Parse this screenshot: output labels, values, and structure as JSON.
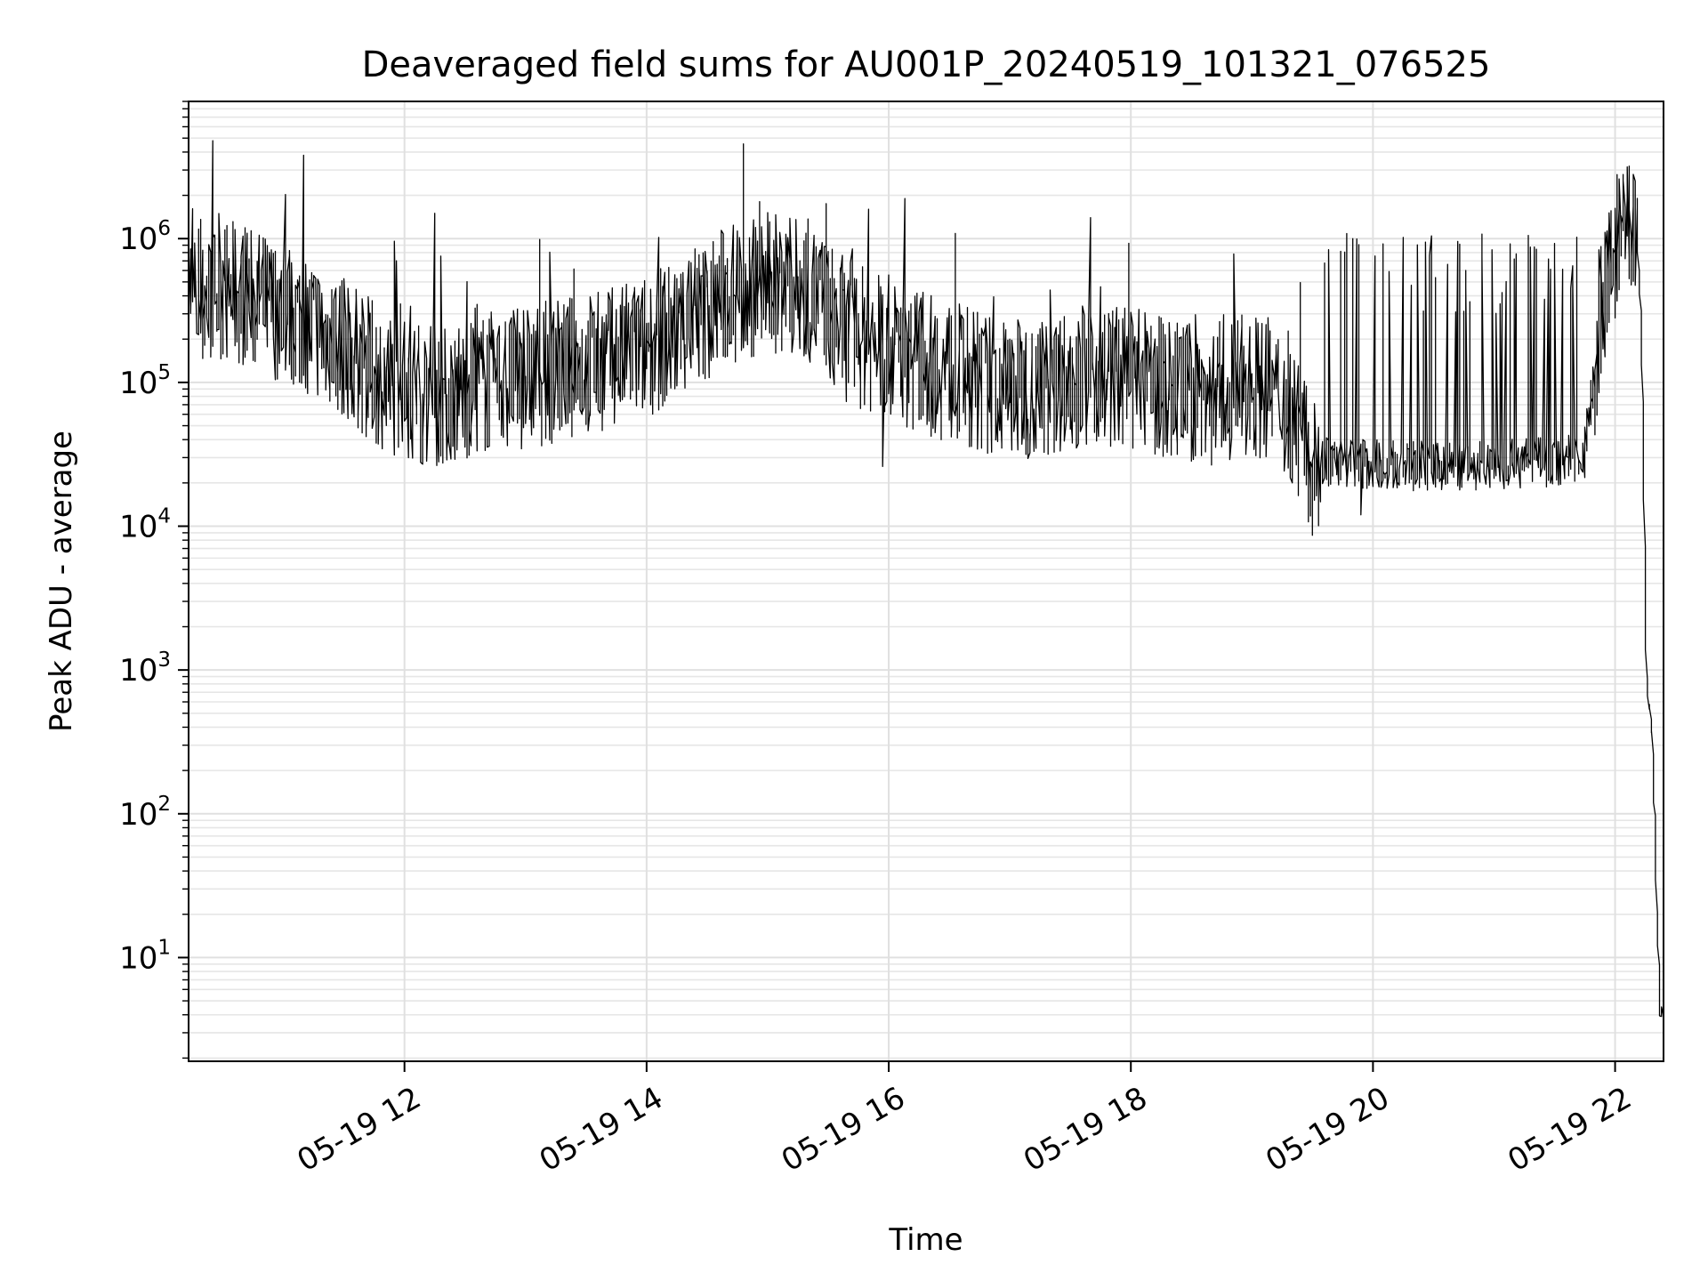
{
  "chart_data": {
    "type": "line",
    "title": "Deaveraged field sums for AU001P_20240519_101321_076525",
    "xlabel": "Time",
    "ylabel": "Peak ADU - average",
    "x_scale": "time",
    "y_scale": "log",
    "xlim": [
      "2024-05-19 10:13",
      "2024-05-19 22:24"
    ],
    "ylim": [
      1.9,
      9000000
    ],
    "grid": true,
    "legend": "none",
    "line_color": "#000000",
    "x_ticks": [
      {
        "value": "2024-05-19 12:00",
        "label": "05-19 12"
      },
      {
        "value": "2024-05-19 14:00",
        "label": "05-19 14"
      },
      {
        "value": "2024-05-19 16:00",
        "label": "05-19 16"
      },
      {
        "value": "2024-05-19 18:00",
        "label": "05-19 18"
      },
      {
        "value": "2024-05-19 20:00",
        "label": "05-19 20"
      },
      {
        "value": "2024-05-19 22:00",
        "label": "05-19 22"
      }
    ],
    "y_ticks": [
      {
        "value": 10,
        "base": "10",
        "exp": "1"
      },
      {
        "value": 100,
        "base": "10",
        "exp": "2"
      },
      {
        "value": 1000,
        "base": "10",
        "exp": "3"
      },
      {
        "value": 10000,
        "base": "10",
        "exp": "4"
      },
      {
        "value": 100000,
        "base": "10",
        "exp": "5"
      },
      {
        "value": 1000000,
        "base": "10",
        "exp": "6"
      }
    ],
    "series": [
      {
        "x": [
          "2024-05-19 10:13",
          "2024-05-19 10:20",
          "2024-05-19 10:25",
          "2024-05-19 10:30",
          "2024-05-19 10:40",
          "2024-05-19 10:50",
          "2024-05-19 11:00",
          "2024-05-19 11:10",
          "2024-05-19 11:20",
          "2024-05-19 11:30",
          "2024-05-19 11:40",
          "2024-05-19 11:50",
          "2024-05-19 12:00",
          "2024-05-19 12:20",
          "2024-05-19 12:40",
          "2024-05-19 13:00",
          "2024-05-19 13:20",
          "2024-05-19 13:40",
          "2024-05-19 14:00",
          "2024-05-19 14:20",
          "2024-05-19 14:40",
          "2024-05-19 15:00",
          "2024-05-19 15:20",
          "2024-05-19 15:40",
          "2024-05-19 16:00",
          "2024-05-19 16:20",
          "2024-05-19 16:40",
          "2024-05-19 17:00",
          "2024-05-19 17:20",
          "2024-05-19 17:40",
          "2024-05-19 18:00",
          "2024-05-19 18:20",
          "2024-05-19 18:40",
          "2024-05-19 19:00",
          "2024-05-19 19:10",
          "2024-05-19 19:20",
          "2024-05-19 19:30",
          "2024-05-19 19:40",
          "2024-05-19 19:50",
          "2024-05-19 20:00",
          "2024-05-19 20:30",
          "2024-05-19 21:00",
          "2024-05-19 21:30",
          "2024-05-19 21:45",
          "2024-05-19 21:50",
          "2024-05-19 21:55",
          "2024-05-19 22:00",
          "2024-05-19 22:05",
          "2024-05-19 22:10",
          "2024-05-19 22:12",
          "2024-05-19 22:14",
          "2024-05-19 22:15",
          "2024-05-19 22:16",
          "2024-05-19 22:17",
          "2024-05-19 22:19",
          "2024-05-19 22:20",
          "2024-05-19 22:21",
          "2024-05-19 22:22",
          "2024-05-19 22:23",
          "2024-05-19 22:24"
        ],
        "y": [
          500000,
          350000,
          450000,
          500000,
          450000,
          400000,
          350000,
          300000,
          250000,
          200000,
          150000,
          120000,
          100000,
          90000,
          110000,
          120000,
          140000,
          160000,
          200000,
          280000,
          450000,
          550000,
          500000,
          250000,
          200000,
          150000,
          120000,
          100000,
          110000,
          130000,
          120000,
          100000,
          90000,
          110000,
          100000,
          70000,
          30000,
          28000,
          27000,
          27000,
          26000,
          27000,
          28000,
          30000,
          100000,
          400000,
          900000,
          1300000,
          1200000,
          800000,
          120000,
          8000,
          900,
          600,
          350,
          100,
          30,
          8,
          4,
          4
        ]
      }
    ],
    "spikes": [
      {
        "x": "2024-05-19 10:25",
        "y": 4800000
      },
      {
        "x": "2024-05-19 11:10",
        "y": 3800000
      },
      {
        "x": "2024-05-19 12:15",
        "y": 1500000
      },
      {
        "x": "2024-05-19 15:50",
        "y": 1600000
      },
      {
        "x": "2024-05-19 16:08",
        "y": 1900000
      },
      {
        "x": "2024-05-19 17:40",
        "y": 1400000
      },
      {
        "x": "2024-05-19 22:10",
        "y": 2800000
      },
      {
        "x": "2024-05-19 15:58",
        "y": 26000
      },
      {
        "x": "2024-05-19 19:55",
        "y": 12000
      }
    ]
  }
}
